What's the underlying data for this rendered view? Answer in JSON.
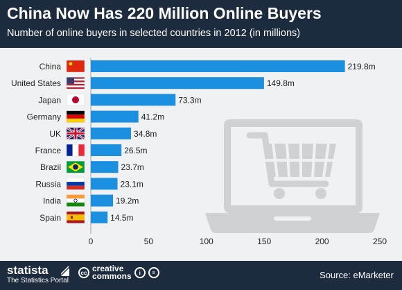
{
  "header": {
    "title": "China Now Has 220 Million Online Buyers",
    "subtitle": "Number of online buyers in selected countries in 2012 (in millions)"
  },
  "chart_data": {
    "type": "bar",
    "orientation": "horizontal",
    "title": "China Now Has 220 Million Online Buyers",
    "subtitle": "Number of online buyers in selected countries in 2012 (in millions)",
    "categories": [
      "China",
      "United States",
      "Japan",
      "Germany",
      "UK",
      "France",
      "Brazil",
      "Russia",
      "India",
      "Spain"
    ],
    "values": [
      219.8,
      149.8,
      73.3,
      41.2,
      34.8,
      26.5,
      23.7,
      23.1,
      19.2,
      14.5
    ],
    "value_labels": [
      "219.8m",
      "149.8m",
      "73.3m",
      "41.2m",
      "34.8m",
      "26.5m",
      "23.7m",
      "23.1m",
      "19.2m",
      "14.5m"
    ],
    "xlim": [
      0,
      250
    ],
    "xticks": [
      0,
      50,
      100,
      150,
      200,
      250
    ],
    "grid": false,
    "legend": "none",
    "bar_color": "#1b8fe0",
    "icon": "laptop-shopping-cart-icon"
  },
  "footer": {
    "brand": "statista",
    "brand_tagline": "The Statistics Portal",
    "cc_line1": "creative",
    "cc_line2": "commons",
    "source": "Source: eMarketer"
  },
  "colors": {
    "header_bg": "#1d2b3e",
    "plot_bg": "#f0f1f2",
    "bar": "#1b8fe0",
    "text": "#222222",
    "watermark": "#cfd2d5"
  }
}
